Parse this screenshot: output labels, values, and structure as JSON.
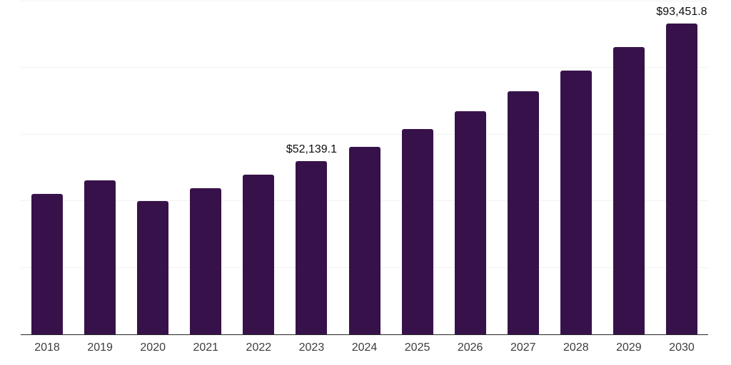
{
  "chart_data": {
    "type": "bar",
    "title": "",
    "xlabel": "",
    "ylabel": "",
    "legend": "none",
    "grid": true,
    "categories": [
      "2018",
      "2019",
      "2020",
      "2021",
      "2022",
      "2023",
      "2024",
      "2025",
      "2026",
      "2027",
      "2028",
      "2029",
      "2030"
    ],
    "values": [
      42100,
      46200,
      40000,
      43900,
      47900,
      52139.1,
      56300,
      61600,
      67000,
      73100,
      79300,
      86200,
      93451.8
    ],
    "annotations": [
      "",
      "",
      "",
      "",
      "",
      "$52,139.1",
      "",
      "",
      "",
      "",
      "",
      "",
      "$93,451.8"
    ],
    "ylim": [
      0,
      100000
    ],
    "gridline_values": [
      20000,
      40000,
      60000,
      80000,
      100000
    ],
    "colors": {
      "bar": "#37124a",
      "grid": "#f2f2f2",
      "axis": "#262626",
      "value_label": "#0d0d0d",
      "tick_label": "#3c3c3c",
      "background": "#ffffff"
    }
  }
}
